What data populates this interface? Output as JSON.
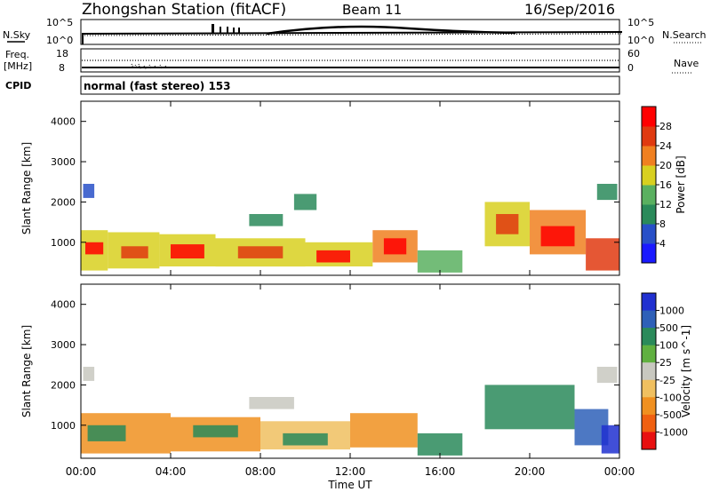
{
  "header": {
    "station": "Zhongshan Station (fitACF)",
    "beam": "Beam 11",
    "date": "16/Sep/2016",
    "mode": "normal (fast stereo) 153"
  },
  "strip_labels": {
    "nsky": "N.Sky",
    "freq_line1": "Freq.",
    "freq_line2": "[MHz]",
    "cpid": "CPID",
    "nsearch": "N.Search",
    "nave": "Nave",
    "nsky_ticks": [
      "10^5",
      "10^0"
    ],
    "freq_ticks": [
      "18",
      "8"
    ],
    "nsearch_ticks": [
      "10^5",
      "10^0"
    ],
    "nave_ticks": [
      "60",
      "0"
    ]
  },
  "chart_data": [
    {
      "type": "heatmap",
      "panel": "power",
      "xlabel": "Time UT",
      "ylabel": "Slant Range [km]",
      "x_ticks": [
        "00:00",
        "04:00",
        "08:00",
        "12:00",
        "16:00",
        "20:00",
        "00:00"
      ],
      "x_range_hours": [
        0,
        24
      ],
      "y_ticks": [
        1000,
        2000,
        3000,
        4000
      ],
      "y_range_km": [
        180,
        4500
      ],
      "colorbar": {
        "label": "Power [dB]",
        "ticks": [
          "4",
          "8",
          "12",
          "16",
          "20",
          "24",
          "28"
        ],
        "colors": [
          "#1a1aff",
          "#2850c8",
          "#2a8a5a",
          "#5ab060",
          "#d8d020",
          "#f08020",
          "#e03a10",
          "#ff0000"
        ]
      },
      "patches": [
        {
          "t0": 0.0,
          "t1": 1.2,
          "r0": 300,
          "r1": 1300,
          "level": 4
        },
        {
          "t0": 0.2,
          "t1": 1.0,
          "r0": 700,
          "r1": 1000,
          "level": 7
        },
        {
          "t0": 1.2,
          "t1": 3.5,
          "r0": 350,
          "r1": 1250,
          "level": 4
        },
        {
          "t0": 1.8,
          "t1": 3.0,
          "r0": 600,
          "r1": 900,
          "level": 6
        },
        {
          "t0": 3.5,
          "t1": 6.0,
          "r0": 400,
          "r1": 1200,
          "level": 4
        },
        {
          "t0": 4.0,
          "t1": 5.5,
          "r0": 600,
          "r1": 950,
          "level": 7
        },
        {
          "t0": 6.0,
          "t1": 10.0,
          "r0": 400,
          "r1": 1100,
          "level": 4
        },
        {
          "t0": 7.0,
          "t1": 9.0,
          "r0": 600,
          "r1": 900,
          "level": 6
        },
        {
          "t0": 10.0,
          "t1": 13.0,
          "r0": 400,
          "r1": 1000,
          "level": 4
        },
        {
          "t0": 10.5,
          "t1": 12.0,
          "r0": 500,
          "r1": 800,
          "level": 7
        },
        {
          "t0": 13.0,
          "t1": 15.0,
          "r0": 500,
          "r1": 1300,
          "level": 5
        },
        {
          "t0": 13.5,
          "t1": 14.5,
          "r0": 700,
          "r1": 1100,
          "level": 7
        },
        {
          "t0": 15.0,
          "t1": 17.0,
          "r0": 250,
          "r1": 800,
          "level": 3
        },
        {
          "t0": 7.5,
          "t1": 9.0,
          "r0": 1400,
          "r1": 1700,
          "level": 2
        },
        {
          "t0": 9.5,
          "t1": 10.5,
          "r0": 1800,
          "r1": 2200,
          "level": 2
        },
        {
          "t0": 0.1,
          "t1": 0.6,
          "r0": 2100,
          "r1": 2450,
          "level": 1
        },
        {
          "t0": 18.0,
          "t1": 20.0,
          "r0": 900,
          "r1": 2000,
          "level": 4
        },
        {
          "t0": 18.5,
          "t1": 19.5,
          "r0": 1200,
          "r1": 1700,
          "level": 6
        },
        {
          "t0": 20.0,
          "t1": 22.5,
          "r0": 700,
          "r1": 1800,
          "level": 5
        },
        {
          "t0": 20.5,
          "t1": 22.0,
          "r0": 900,
          "r1": 1400,
          "level": 7
        },
        {
          "t0": 22.5,
          "t1": 24.0,
          "r0": 300,
          "r1": 1100,
          "level": 6
        },
        {
          "t0": 23.0,
          "t1": 23.9,
          "r0": 2050,
          "r1": 2450,
          "level": 2
        }
      ]
    },
    {
      "type": "heatmap",
      "panel": "velocity",
      "xlabel": "Time UT",
      "ylabel": "Slant Range [km]",
      "x_ticks": [
        "00:00",
        "04:00",
        "08:00",
        "12:00",
        "16:00",
        "20:00",
        "00:00"
      ],
      "x_range_hours": [
        0,
        24
      ],
      "y_ticks": [
        1000,
        2000,
        3000,
        4000
      ],
      "y_range_km": [
        180,
        4500
      ],
      "colorbar": {
        "label": "Velocity [m s^-1]",
        "ticks": [
          "1000",
          "500",
          "100",
          "25",
          "-25",
          "-100",
          "-500",
          "-1000"
        ],
        "colors": [
          "#2030d0",
          "#2e60b8",
          "#2a8a5a",
          "#60b040",
          "#c8c8c0",
          "#f0c060",
          "#f09020",
          "#f06010",
          "#e81010"
        ]
      },
      "patches": [
        {
          "t0": 0.0,
          "t1": 4.0,
          "r0": 300,
          "r1": 1300,
          "level": 6
        },
        {
          "t0": 0.3,
          "t1": 2.0,
          "r0": 600,
          "r1": 1000,
          "level": 2
        },
        {
          "t0": 4.0,
          "t1": 8.0,
          "r0": 350,
          "r1": 1200,
          "level": 6
        },
        {
          "t0": 5.0,
          "t1": 7.0,
          "r0": 700,
          "r1": 1000,
          "level": 2
        },
        {
          "t0": 8.0,
          "t1": 12.0,
          "r0": 400,
          "r1": 1100,
          "level": 5
        },
        {
          "t0": 9.0,
          "t1": 11.0,
          "r0": 500,
          "r1": 800,
          "level": 2
        },
        {
          "t0": 12.0,
          "t1": 15.0,
          "r0": 450,
          "r1": 1300,
          "level": 6
        },
        {
          "t0": 15.0,
          "t1": 17.0,
          "r0": 250,
          "r1": 800,
          "level": 2
        },
        {
          "t0": 7.5,
          "t1": 9.5,
          "r0": 1400,
          "r1": 1700,
          "level": 4
        },
        {
          "t0": 0.1,
          "t1": 0.6,
          "r0": 2100,
          "r1": 2450,
          "level": 4
        },
        {
          "t0": 18.0,
          "t1": 22.0,
          "r0": 900,
          "r1": 2000,
          "level": 2
        },
        {
          "t0": 22.0,
          "t1": 23.5,
          "r0": 500,
          "r1": 1400,
          "level": 1
        },
        {
          "t0": 23.2,
          "t1": 24.0,
          "r0": 300,
          "r1": 1000,
          "level": 0
        },
        {
          "t0": 23.0,
          "t1": 23.9,
          "r0": 2050,
          "r1": 2450,
          "level": 4
        }
      ]
    }
  ]
}
